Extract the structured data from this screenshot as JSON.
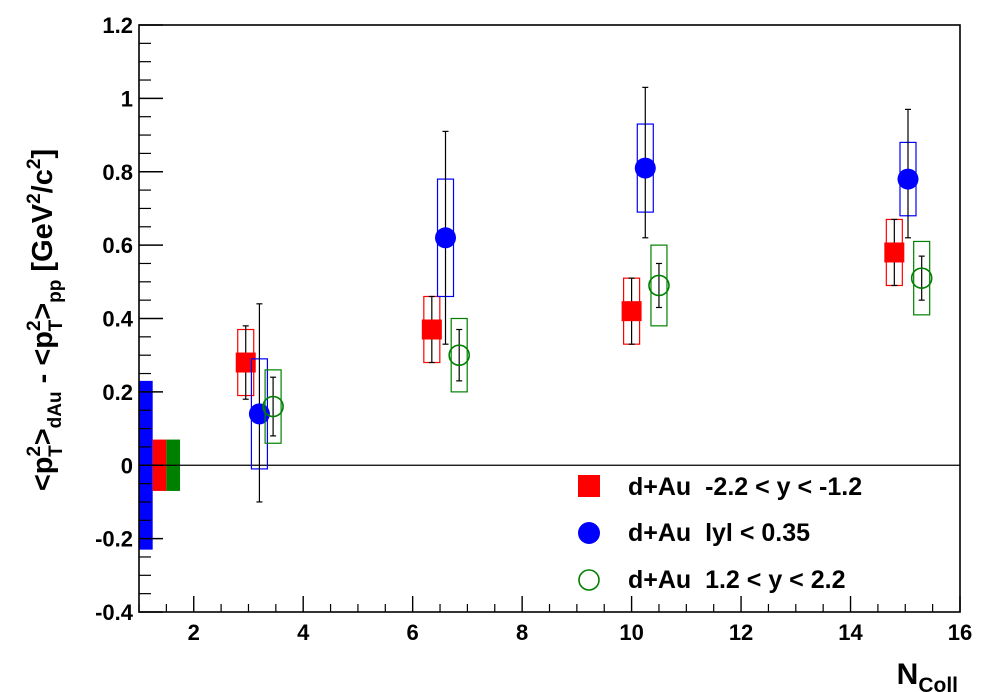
{
  "chart_data": {
    "type": "scatter",
    "title": "",
    "xlabel": {
      "main": "N",
      "sub": "Coll"
    },
    "ylabel": {
      "open": "<p",
      "sup1": "2",
      "sub1": "T",
      "mid1": ">",
      "sub_dau": "dAu",
      "minus": " - <p",
      "sup2": "2",
      "sub2": "T",
      "mid2": ">",
      "sub_pp": "pp",
      "unit_open": " [GeV",
      "unit_sup1": "2",
      "unit_mid": "/c",
      "unit_sup2": "2",
      "unit_close": "]"
    },
    "xlim": [
      1,
      16
    ],
    "ylim": [
      -0.4,
      1.2
    ],
    "x_major_ticks": [
      2,
      4,
      6,
      8,
      10,
      12,
      14,
      16
    ],
    "x_tick_labels": [
      "2",
      "4",
      "6",
      "8",
      "10",
      "12",
      "14",
      "16"
    ],
    "y_major_ticks": [
      -0.4,
      -0.2,
      0,
      0.2,
      0.4,
      0.6,
      0.8,
      1,
      1.2
    ],
    "y_tick_labels": [
      "-0.4",
      "-0.2",
      "0",
      "0.2",
      "0.4",
      "0.6",
      "0.8",
      "1",
      "1.2"
    ],
    "grid": false,
    "zero_line": true,
    "legend_position": "bottom-right",
    "series": [
      {
        "name": "d+Au  -2.2 < y < -1.2",
        "marker": "filled-square",
        "color": "#ff0000",
        "points": [
          {
            "x": 2.95,
            "y": 0.28,
            "stat_lo": 0.18,
            "stat_hi": 0.38,
            "sys_lo": 0.19,
            "sys_hi": 0.37
          },
          {
            "x": 6.35,
            "y": 0.37,
            "stat_lo": 0.28,
            "stat_hi": 0.46,
            "sys_lo": 0.28,
            "sys_hi": 0.46
          },
          {
            "x": 10.0,
            "y": 0.42,
            "stat_lo": 0.33,
            "stat_hi": 0.51,
            "sys_lo": 0.33,
            "sys_hi": 0.51
          },
          {
            "x": 14.8,
            "y": 0.58,
            "stat_lo": 0.49,
            "stat_hi": 0.67,
            "sys_lo": 0.49,
            "sys_hi": 0.67
          }
        ]
      },
      {
        "name": "d+Au  lyl < 0.35",
        "marker": "filled-circle",
        "color": "#0000ff",
        "points": [
          {
            "x": 3.2,
            "y": 0.14,
            "stat_lo": -0.1,
            "stat_hi": 0.44,
            "sys_lo": -0.01,
            "sys_hi": 0.29
          },
          {
            "x": 6.6,
            "y": 0.62,
            "stat_lo": 0.33,
            "stat_hi": 0.91,
            "sys_lo": 0.46,
            "sys_hi": 0.78
          },
          {
            "x": 10.25,
            "y": 0.81,
            "stat_lo": 0.62,
            "stat_hi": 1.03,
            "sys_lo": 0.69,
            "sys_hi": 0.93
          },
          {
            "x": 15.05,
            "y": 0.78,
            "stat_lo": 0.62,
            "stat_hi": 0.97,
            "sys_lo": 0.68,
            "sys_hi": 0.88
          }
        ]
      },
      {
        "name": "d+Au  1.2 < y < 2.2",
        "marker": "open-circle",
        "color": "#008000",
        "points": [
          {
            "x": 3.45,
            "y": 0.16,
            "stat_lo": 0.08,
            "stat_hi": 0.24,
            "sys_lo": 0.06,
            "sys_hi": 0.26
          },
          {
            "x": 6.85,
            "y": 0.3,
            "stat_lo": 0.23,
            "stat_hi": 0.37,
            "sys_lo": 0.2,
            "sys_hi": 0.4
          },
          {
            "x": 10.5,
            "y": 0.49,
            "stat_lo": 0.43,
            "stat_hi": 0.55,
            "sys_lo": 0.38,
            "sys_hi": 0.6
          },
          {
            "x": 15.3,
            "y": 0.51,
            "stat_lo": 0.45,
            "stat_hi": 0.57,
            "sys_lo": 0.41,
            "sys_hi": 0.61
          }
        ]
      }
    ],
    "global_uncertainties": [
      {
        "series": "d+Au  lyl < 0.35",
        "color": "#0000ff",
        "x0": 1.0,
        "x1": 1.25,
        "y_lo": -0.23,
        "y_hi": 0.23
      },
      {
        "series": "d+Au  -2.2 < y < -1.2",
        "color": "#ff0000",
        "x0": 1.25,
        "x1": 1.5,
        "y_lo": -0.07,
        "y_hi": 0.07
      },
      {
        "series": "d+Au  1.2 < y < 2.2",
        "color": "#008000",
        "x0": 1.5,
        "x1": 1.75,
        "y_lo": -0.07,
        "y_hi": 0.07
      }
    ]
  }
}
